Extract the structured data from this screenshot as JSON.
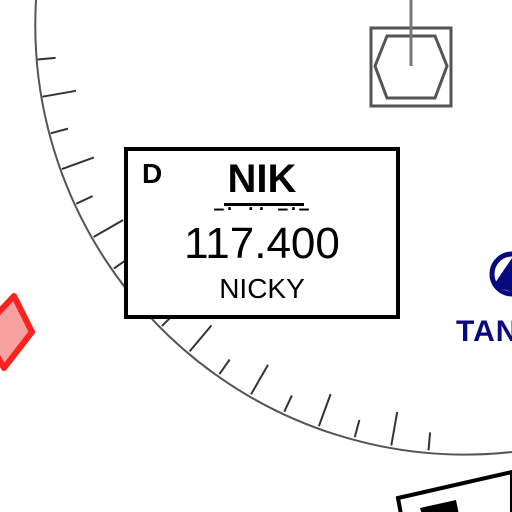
{
  "navaid": {
    "class_letter": "D",
    "ident": "NIK",
    "morse": "–· ·· –·–",
    "frequency": "117.400",
    "name": "NICKY"
  },
  "airport": {
    "label_partial": "TAN"
  },
  "colors": {
    "compass_rose": "#555555",
    "navaid_box": "#000000",
    "airport": "#0a0a80",
    "restricted_area": "#ff2a2a"
  },
  "icons": [
    "vor-station-icon",
    "airport-symbol-icon",
    "restricted-area-marker-icon"
  ]
}
